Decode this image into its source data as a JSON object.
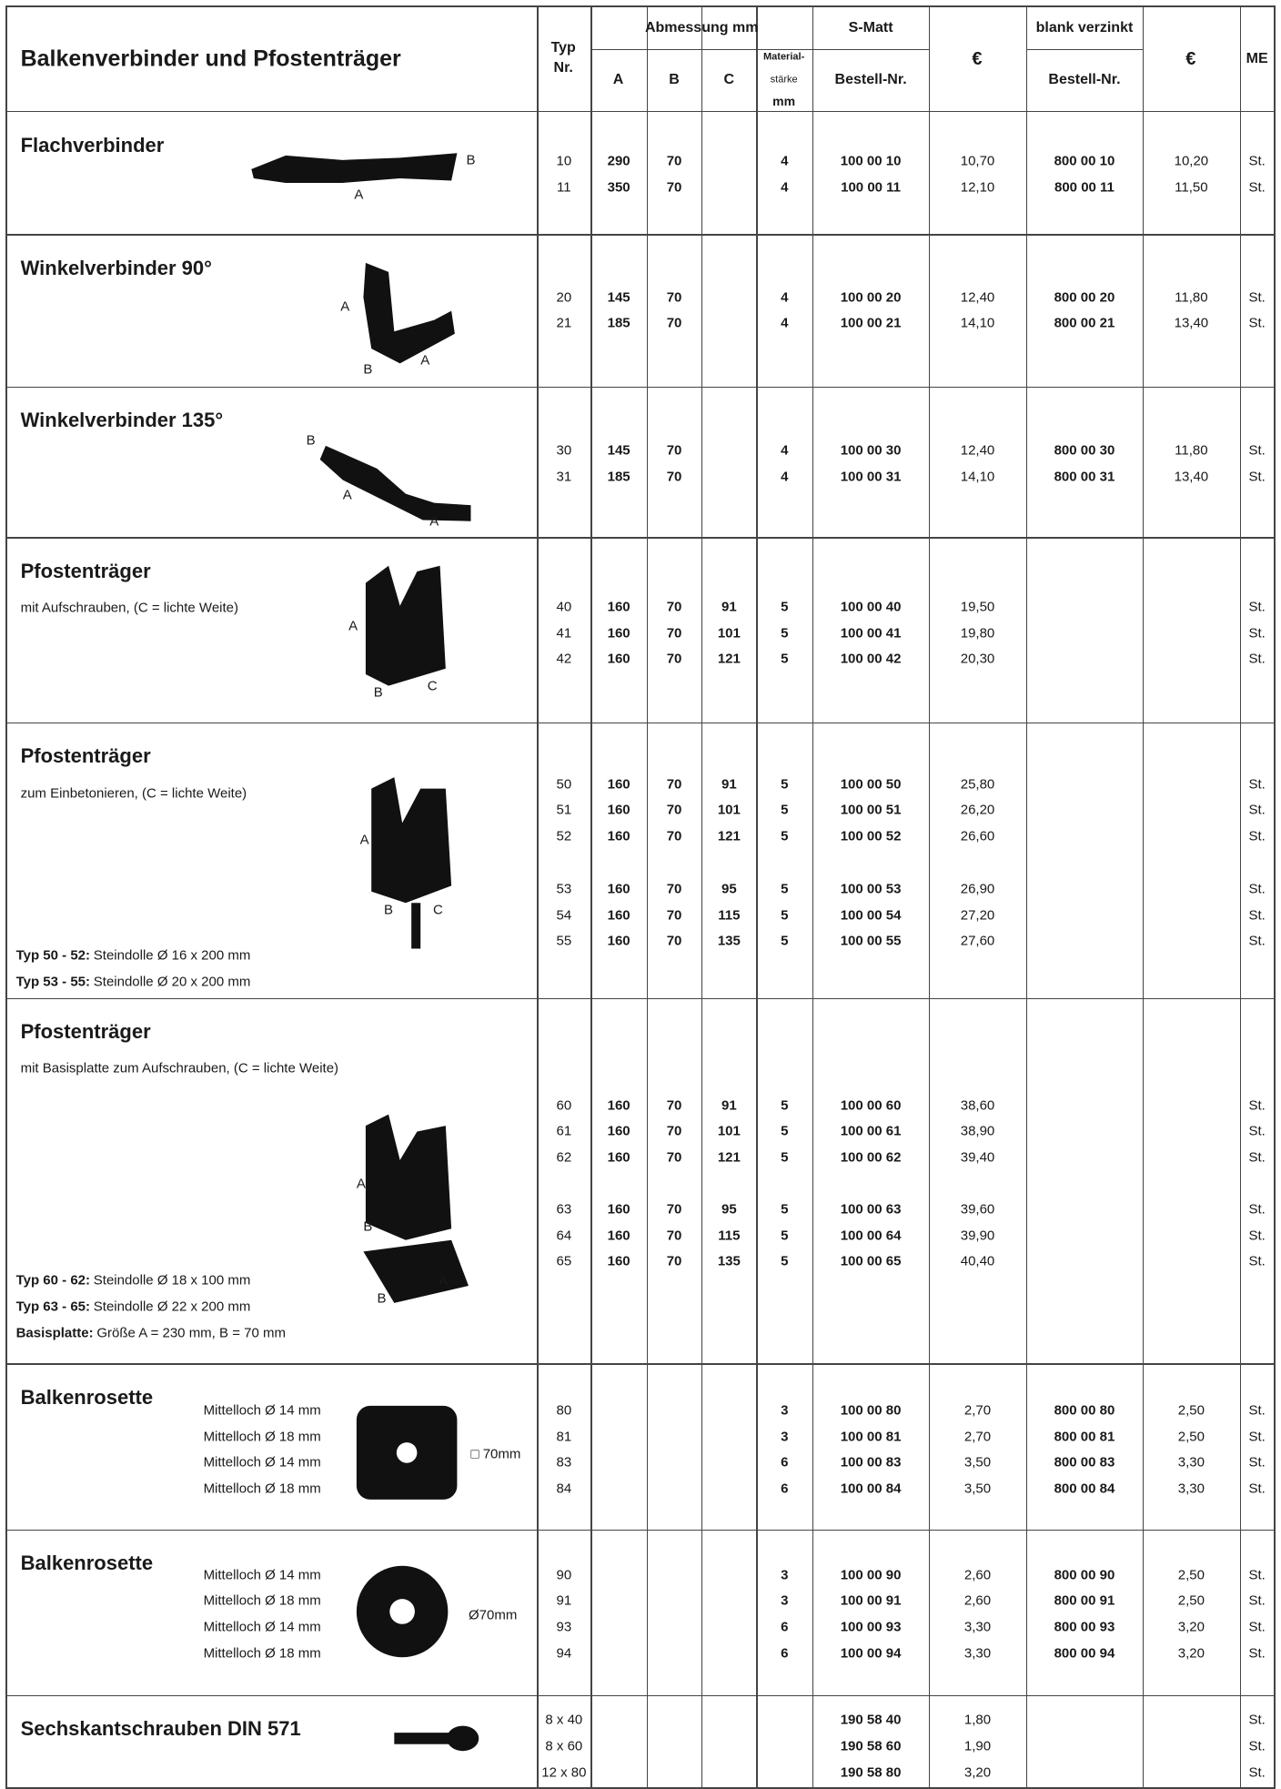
{
  "header": {
    "title": "Balkenverbinder und Pfostenträger",
    "typ": [
      "Typ",
      "Nr."
    ],
    "abmessung": "Abmessung mm",
    "dims": [
      "A",
      "B",
      "C"
    ],
    "material": [
      "Material-",
      "stärke",
      "mm"
    ],
    "smatt": "S-Matt",
    "smatt_order": "Bestell-Nr.",
    "price": "€",
    "blank": "blank verzinkt",
    "blank_order": "Bestell-Nr.",
    "price2": "€",
    "me": "ME"
  },
  "sections": [
    {
      "title": "Flachverbinder",
      "figure_labels": [
        "B",
        "A"
      ],
      "row_groups": [
        [
          [
            "10",
            "290",
            "70",
            null,
            "4",
            "100 00 10",
            "10,70",
            "800 00 10",
            "10,20",
            "St."
          ],
          [
            "11",
            "350",
            "70",
            null,
            "4",
            "100 00 11",
            "12,10",
            "800 00 11",
            "11,50",
            "St."
          ]
        ]
      ]
    },
    {
      "title": "Winkelverbinder 90°",
      "figure_labels": [
        "A",
        "B",
        "A"
      ],
      "row_groups": [
        [
          [
            "20",
            "145",
            "70",
            null,
            "4",
            "100 00 20",
            "12,40",
            "800 00 20",
            "11,80",
            "St."
          ],
          [
            "21",
            "185",
            "70",
            null,
            "4",
            "100 00 21",
            "14,10",
            "800 00 21",
            "13,40",
            "St."
          ]
        ]
      ]
    },
    {
      "title": "Winkelverbinder 135°",
      "figure_labels": [
        "B",
        "A",
        "A"
      ],
      "row_groups": [
        [
          [
            "30",
            "145",
            "70",
            null,
            "4",
            "100 00 30",
            "12,40",
            "800 00 30",
            "11,80",
            "St."
          ],
          [
            "31",
            "185",
            "70",
            null,
            "4",
            "100 00 31",
            "14,10",
            "800 00 31",
            "13,40",
            "St."
          ]
        ]
      ]
    },
    {
      "title": "Pfostenträger",
      "subtitle": "mit Aufschrauben, (C = lichte Weite)",
      "figure_labels": [
        "A",
        "B",
        "C"
      ],
      "row_groups": [
        [
          [
            "40",
            "160",
            "70",
            "91",
            "5",
            "100 00 40",
            "19,50",
            null,
            null,
            "St."
          ],
          [
            "41",
            "160",
            "70",
            "101",
            "5",
            "100 00 41",
            "19,80",
            null,
            null,
            "St."
          ],
          [
            "42",
            "160",
            "70",
            "121",
            "5",
            "100 00 42",
            "20,30",
            null,
            null,
            "St."
          ]
        ]
      ]
    },
    {
      "title": "Pfostenträger",
      "subtitle": "zum Einbetonieren, (C = lichte Weite)",
      "figure_labels": [
        "A",
        "B",
        "C"
      ],
      "notes": [
        {
          "label": "Typ 50 - 52:",
          "text": "Steindolle Ø 16 x 200 mm"
        },
        {
          "label": "Typ 53 - 55:",
          "text": "Steindolle Ø 20 x 200 mm"
        }
      ],
      "row_groups": [
        [
          [
            "50",
            "160",
            "70",
            "91",
            "5",
            "100 00 50",
            "25,80",
            null,
            null,
            "St."
          ],
          [
            "51",
            "160",
            "70",
            "101",
            "5",
            "100 00 51",
            "26,20",
            null,
            null,
            "St."
          ],
          [
            "52",
            "160",
            "70",
            "121",
            "5",
            "100 00 52",
            "26,60",
            null,
            null,
            "St."
          ]
        ],
        [
          [
            "53",
            "160",
            "70",
            "95",
            "5",
            "100 00 53",
            "26,90",
            null,
            null,
            "St."
          ],
          [
            "54",
            "160",
            "70",
            "115",
            "5",
            "100 00 54",
            "27,20",
            null,
            null,
            "St."
          ],
          [
            "55",
            "160",
            "70",
            "135",
            "5",
            "100 00 55",
            "27,60",
            null,
            null,
            "St."
          ]
        ]
      ]
    },
    {
      "title": "Pfostenträger",
      "subtitle": "mit Basisplatte zum Aufschrauben, (C = lichte Weite)",
      "figure_labels": [
        "A",
        "B",
        "B",
        "A"
      ],
      "notes": [
        {
          "label": "Typ 60 - 62:",
          "text": "Steindolle Ø 18 x 100 mm"
        },
        {
          "label": "Typ 63 - 65:",
          "text": "Steindolle Ø 22 x 200 mm"
        },
        {
          "label": "Basisplatte:",
          "text": "Größe A = 230 mm, B = 70 mm"
        }
      ],
      "row_groups": [
        [
          [
            "60",
            "160",
            "70",
            "91",
            "5",
            "100 00 60",
            "38,60",
            null,
            null,
            "St."
          ],
          [
            "61",
            "160",
            "70",
            "101",
            "5",
            "100 00 61",
            "38,90",
            null,
            null,
            "St."
          ],
          [
            "62",
            "160",
            "70",
            "121",
            "5",
            "100 00 62",
            "39,40",
            null,
            null,
            "St."
          ]
        ],
        [
          [
            "63",
            "160",
            "70",
            "95",
            "5",
            "100 00 63",
            "39,60",
            null,
            null,
            "St."
          ],
          [
            "64",
            "160",
            "70",
            "115",
            "5",
            "100 00 64",
            "39,90",
            null,
            null,
            "St."
          ],
          [
            "65",
            "160",
            "70",
            "135",
            "5",
            "100 00 65",
            "40,40",
            null,
            null,
            "St."
          ]
        ]
      ]
    },
    {
      "title": "Balkenrosette",
      "figure_labels": [
        "□ 70mm"
      ],
      "row_labels": [
        "Mittelloch Ø 14 mm",
        "Mittelloch Ø 18 mm",
        "Mittelloch Ø 14 mm",
        "Mittelloch Ø 18 mm"
      ],
      "row_groups": [
        [
          [
            "80",
            null,
            null,
            null,
            "3",
            "100 00 80",
            "2,70",
            "800 00 80",
            "2,50",
            "St."
          ],
          [
            "81",
            null,
            null,
            null,
            "3",
            "100 00 81",
            "2,70",
            "800 00 81",
            "2,50",
            "St."
          ],
          [
            "83",
            null,
            null,
            null,
            "6",
            "100 00 83",
            "3,50",
            "800 00 83",
            "3,30",
            "St."
          ],
          [
            "84",
            null,
            null,
            null,
            "6",
            "100 00 84",
            "3,50",
            "800 00 84",
            "3,30",
            "St."
          ]
        ]
      ]
    },
    {
      "title": "Balkenrosette",
      "figure_labels": [
        "Ø70mm"
      ],
      "row_labels": [
        "Mittelloch Ø 14 mm",
        "Mittelloch Ø 18 mm",
        "Mittelloch Ø 14 mm",
        "Mittelloch Ø 18 mm"
      ],
      "row_groups": [
        [
          [
            "90",
            null,
            null,
            null,
            "3",
            "100 00 90",
            "2,60",
            "800 00 90",
            "2,50",
            "St."
          ],
          [
            "91",
            null,
            null,
            null,
            "3",
            "100 00 91",
            "2,60",
            "800 00 91",
            "2,50",
            "St."
          ],
          [
            "93",
            null,
            null,
            null,
            "6",
            "100 00 93",
            "3,30",
            "800 00 93",
            "3,20",
            "St."
          ],
          [
            "94",
            null,
            null,
            null,
            "6",
            "100 00 94",
            "3,30",
            "800 00 94",
            "3,20",
            "St."
          ]
        ]
      ]
    },
    {
      "title": "Sechskantschrauben DIN 571",
      "row_groups": [
        [
          [
            "8 x 40",
            null,
            null,
            null,
            null,
            "190 58 40",
            "1,80",
            null,
            null,
            "St."
          ],
          [
            "8 x 60",
            null,
            null,
            null,
            null,
            "190 58 60",
            "1,90",
            null,
            null,
            "St."
          ],
          [
            "12 x 80",
            null,
            null,
            null,
            null,
            "190 58 80",
            "3,20",
            null,
            null,
            "St."
          ]
        ]
      ]
    }
  ]
}
